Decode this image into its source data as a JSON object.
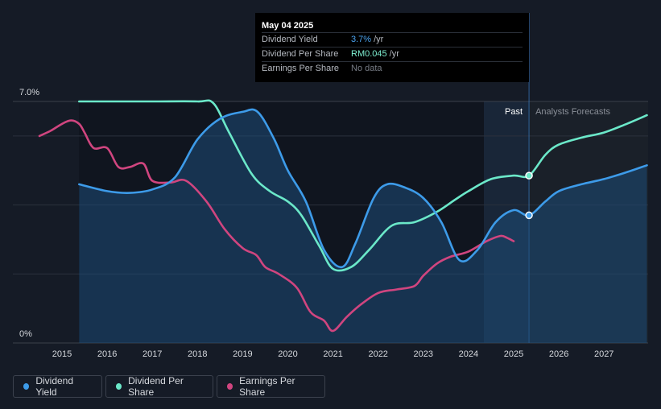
{
  "tooltip": {
    "date": "May 04 2025",
    "rows": [
      {
        "label": "Dividend Yield",
        "value": "3.7%",
        "unit": "/yr"
      },
      {
        "label": "Dividend Per Share",
        "value": "RM0.045",
        "unit": "/yr"
      },
      {
        "label": "Earnings Per Share",
        "value": "No data",
        "unit": ""
      }
    ]
  },
  "legend": {
    "items": [
      {
        "label": "Dividend Yield",
        "color": "#3d9be9"
      },
      {
        "label": "Dividend Per Share",
        "color": "#6be8c9"
      },
      {
        "label": "Earnings Per Share",
        "color": "#d0457f"
      }
    ]
  },
  "chart_data": {
    "type": "line",
    "ylim": [
      0,
      7.0
    ],
    "y_tick_labels": [
      "0%",
      "7.0%"
    ],
    "x_ticks": [
      "2015",
      "2016",
      "2017",
      "2018",
      "2019",
      "2020",
      "2021",
      "2022",
      "2023",
      "2024",
      "2025",
      "2026",
      "2027"
    ],
    "regions": {
      "past_label": "Past",
      "forecast_label": "Analysts Forecasts"
    },
    "grid": true,
    "series": [
      {
        "name": "Dividend Yield",
        "color": "#3d9be9",
        "points": [
          [
            2015.38,
            4.6
          ],
          [
            2016.0,
            4.4
          ],
          [
            2016.5,
            4.35
          ],
          [
            2017.0,
            4.45
          ],
          [
            2017.5,
            4.8
          ],
          [
            2018.0,
            5.9
          ],
          [
            2018.5,
            6.5
          ],
          [
            2019.0,
            6.7
          ],
          [
            2019.33,
            6.7
          ],
          [
            2019.7,
            5.9
          ],
          [
            2020.0,
            5.0
          ],
          [
            2020.4,
            4.1
          ],
          [
            2020.8,
            2.7
          ],
          [
            2021.2,
            2.2
          ],
          [
            2021.5,
            2.9
          ],
          [
            2021.9,
            4.2
          ],
          [
            2022.2,
            4.6
          ],
          [
            2022.6,
            4.5
          ],
          [
            2023.0,
            4.2
          ],
          [
            2023.4,
            3.5
          ],
          [
            2023.8,
            2.4
          ],
          [
            2024.2,
            2.7
          ],
          [
            2024.6,
            3.5
          ],
          [
            2025.0,
            3.85
          ],
          [
            2025.34,
            3.7
          ],
          [
            2025.7,
            4.1
          ],
          [
            2026.0,
            4.4
          ],
          [
            2026.5,
            4.6
          ],
          [
            2027.0,
            4.75
          ],
          [
            2027.5,
            4.95
          ],
          [
            2027.95,
            5.15
          ]
        ]
      },
      {
        "name": "Dividend Per Share",
        "color": "#6be8c9",
        "points": [
          [
            2015.38,
            7.0
          ],
          [
            2016.0,
            7.0
          ],
          [
            2017.0,
            7.0
          ],
          [
            2018.0,
            7.0
          ],
          [
            2018.35,
            6.95
          ],
          [
            2018.7,
            6.1
          ],
          [
            2019.2,
            4.9
          ],
          [
            2019.6,
            4.4
          ],
          [
            2020.0,
            4.1
          ],
          [
            2020.3,
            3.7
          ],
          [
            2020.7,
            2.8
          ],
          [
            2021.0,
            2.15
          ],
          [
            2021.4,
            2.2
          ],
          [
            2021.8,
            2.7
          ],
          [
            2022.3,
            3.4
          ],
          [
            2022.8,
            3.5
          ],
          [
            2023.3,
            3.8
          ],
          [
            2023.7,
            4.15
          ],
          [
            2024.0,
            4.4
          ],
          [
            2024.5,
            4.75
          ],
          [
            2025.0,
            4.85
          ],
          [
            2025.34,
            4.85
          ],
          [
            2025.7,
            5.45
          ],
          [
            2026.0,
            5.75
          ],
          [
            2026.5,
            5.95
          ],
          [
            2027.0,
            6.1
          ],
          [
            2027.5,
            6.35
          ],
          [
            2027.95,
            6.6
          ]
        ]
      },
      {
        "name": "Earnings Per Share",
        "color": "#d0457f",
        "points": [
          [
            2014.5,
            6.0
          ],
          [
            2014.75,
            6.15
          ],
          [
            2015.0,
            6.35
          ],
          [
            2015.2,
            6.45
          ],
          [
            2015.38,
            6.35
          ],
          [
            2015.5,
            6.1
          ],
          [
            2015.7,
            5.65
          ],
          [
            2016.0,
            5.65
          ],
          [
            2016.25,
            5.1
          ],
          [
            2016.5,
            5.1
          ],
          [
            2016.8,
            5.2
          ],
          [
            2017.0,
            4.7
          ],
          [
            2017.4,
            4.65
          ],
          [
            2017.75,
            4.7
          ],
          [
            2018.2,
            4.1
          ],
          [
            2018.6,
            3.3
          ],
          [
            2019.0,
            2.75
          ],
          [
            2019.3,
            2.55
          ],
          [
            2019.5,
            2.2
          ],
          [
            2019.8,
            2.0
          ],
          [
            2020.2,
            1.6
          ],
          [
            2020.5,
            0.9
          ],
          [
            2020.8,
            0.65
          ],
          [
            2021.0,
            0.35
          ],
          [
            2021.3,
            0.75
          ],
          [
            2021.6,
            1.1
          ],
          [
            2022.0,
            1.45
          ],
          [
            2022.4,
            1.55
          ],
          [
            2022.8,
            1.65
          ],
          [
            2023.0,
            1.95
          ],
          [
            2023.3,
            2.3
          ],
          [
            2023.6,
            2.5
          ],
          [
            2024.0,
            2.65
          ],
          [
            2024.4,
            2.95
          ],
          [
            2024.7,
            3.1
          ],
          [
            2024.85,
            3.05
          ],
          [
            2025.0,
            2.95
          ]
        ]
      }
    ],
    "highlight_points": [
      [
        2025.34,
        3.7,
        "Dividend Yield"
      ],
      [
        2025.34,
        4.85,
        "Dividend Per Share"
      ]
    ]
  }
}
